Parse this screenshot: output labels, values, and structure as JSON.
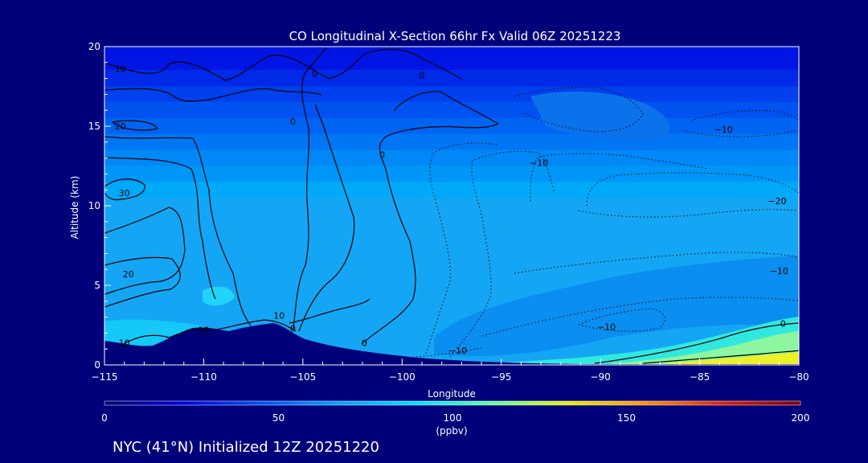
{
  "chart_data": {
    "type": "heatmap",
    "title": "CO Longitudinal X-Section 66hr  Fx Valid 06Z 20251223",
    "xlabel": "Longitude",
    "ylabel": "Altitude (km)",
    "xlim": [
      -115,
      -80
    ],
    "ylim": [
      0,
      20
    ],
    "x_ticks": [
      -115,
      -110,
      -105,
      -100,
      -95,
      -90,
      -85,
      -80
    ],
    "x_tick_labels": [
      "−115",
      "−110",
      "−105",
      "−100",
      "−95",
      "−90",
      "−85",
      "−80"
    ],
    "y_ticks": [
      0,
      5,
      10,
      15,
      20
    ],
    "y_tick_labels": [
      "0",
      "5",
      "10",
      "15",
      "20"
    ],
    "colorbar": {
      "min": 0,
      "max": 200,
      "ticks": [
        0,
        50,
        100,
        150,
        200
      ],
      "tick_labels": [
        "0",
        "50",
        "100",
        "150",
        "200"
      ],
      "unit": "(ppbv)",
      "colors": [
        "#00006e",
        "#0000e0",
        "#0050f0",
        "#00a0f8",
        "#00e0ff",
        "#60ffa0",
        "#e8f000",
        "#ff9000",
        "#e02000",
        "#800000"
      ]
    },
    "bands_km": [
      {
        "top": 20.0,
        "value": 28
      },
      {
        "top": 18.5,
        "value": 34
      },
      {
        "top": 17.5,
        "value": 40
      },
      {
        "top": 16.5,
        "value": 45
      },
      {
        "top": 15.5,
        "value": 50
      },
      {
        "top": 14.5,
        "value": 55
      },
      {
        "top": 13.5,
        "value": 60
      },
      {
        "top": 12.5,
        "value": 64
      },
      {
        "top": 11.5,
        "value": 70
      }
    ],
    "contour_labels": [
      {
        "text": "10",
        "x": -114.2,
        "y": 18.6
      },
      {
        "text": "20",
        "x": -114.2,
        "y": 15.0
      },
      {
        "text": "30",
        "x": -114.0,
        "y": 10.8
      },
      {
        "text": "20",
        "x": -113.8,
        "y": 5.7
      },
      {
        "text": "10",
        "x": -114.0,
        "y": 1.4
      },
      {
        "text": "10",
        "x": -110.0,
        "y": 2.2
      },
      {
        "text": "10",
        "x": -106.2,
        "y": 3.1
      },
      {
        "text": "0",
        "x": -105.5,
        "y": 2.3
      },
      {
        "text": "0",
        "x": -105.5,
        "y": 15.3
      },
      {
        "text": "0",
        "x": -104.4,
        "y": 18.3
      },
      {
        "text": "0",
        "x": -101.0,
        "y": 13.2
      },
      {
        "text": "0",
        "x": -99.0,
        "y": 18.2
      },
      {
        "text": "0",
        "x": -101.9,
        "y": 1.4
      },
      {
        "text": "−10",
        "x": -97.2,
        "y": 0.9
      },
      {
        "text": "−10",
        "x": -93.1,
        "y": 12.7
      },
      {
        "text": "−10",
        "x": -83.8,
        "y": 14.8
      },
      {
        "text": "−20",
        "x": -81.1,
        "y": 10.3
      },
      {
        "text": "−10",
        "x": -81.0,
        "y": 5.9
      },
      {
        "text": "0",
        "x": -80.8,
        "y": 2.6
      },
      {
        "text": "−10",
        "x": -89.7,
        "y": 2.4
      }
    ]
  },
  "footer": {
    "location_text": "NYC (41°N) Initialized 12Z 20251220"
  }
}
